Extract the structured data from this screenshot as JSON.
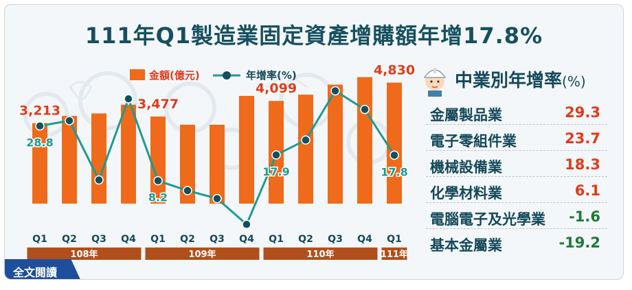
{
  "title": "111年Q1製造業固定資產增購額年增17.8%",
  "legend": {
    "amount_label": "金額(億元)",
    "growth_label": "年增率(%)"
  },
  "colors": {
    "bar": "#ef6a1a",
    "line": "#1e9a92",
    "marker": "#144f5e",
    "positive": "#e5391a",
    "negative": "#1e7a38",
    "year_band": "#b14f1c",
    "title": "#16505f"
  },
  "chart_data": {
    "type": "bar",
    "series": [
      {
        "name": "金額(億元)",
        "type": "bar",
        "values": [
          3213,
          3500,
          3600,
          3950,
          3477,
          3150,
          3150,
          4300,
          4099,
          4350,
          4750,
          5050,
          4830
        ]
      },
      {
        "name": "年增率(%)",
        "type": "line",
        "values": [
          28.8,
          30.8,
          8.5,
          39.0,
          8.2,
          4.5,
          1.5,
          -8.2,
          17.9,
          23.5,
          42.0,
          35.0,
          17.8
        ]
      }
    ],
    "categories": [
      "Q1",
      "Q2",
      "Q3",
      "Q4",
      "Q1",
      "Q2",
      "Q3",
      "Q4",
      "Q1",
      "Q2",
      "Q3",
      "Q4",
      "Q1"
    ],
    "years": [
      {
        "label": "108年",
        "span": 4
      },
      {
        "label": "109年",
        "span": 4
      },
      {
        "label": "110年",
        "span": 4
      },
      {
        "label": "111年",
        "span": 1
      }
    ],
    "bar_labels": [
      {
        "index": 0,
        "text": "3,213"
      },
      {
        "index": 4,
        "text": "3,477"
      },
      {
        "index": 8,
        "text": "4,099"
      },
      {
        "index": 12,
        "text": "4,830"
      }
    ],
    "line_labels": [
      {
        "index": 0,
        "text": "28.8"
      },
      {
        "index": 4,
        "text": "8.2"
      },
      {
        "index": 8,
        "text": "17.9"
      },
      {
        "index": 12,
        "text": "17.8"
      }
    ],
    "ylim_bar": [
      0,
      5200
    ],
    "ylim_line": [
      -12,
      46
    ]
  },
  "industries": {
    "title": "中業別年增率",
    "unit": "(%)",
    "items": [
      {
        "name": "金屬製品業",
        "value": "29.3",
        "sign": "positive"
      },
      {
        "name": "電子零組件業",
        "value": "23.7",
        "sign": "positive"
      },
      {
        "name": "機械設備業",
        "value": "18.3",
        "sign": "positive"
      },
      {
        "name": "化學材料業",
        "value": "6.1",
        "sign": "positive"
      },
      {
        "name": "電腦電子及光學業",
        "value": "-1.6",
        "sign": "negative"
      },
      {
        "name": "基本金屬業",
        "value": "-19.2",
        "sign": "negative"
      }
    ]
  },
  "read_button": "全文閱讀"
}
